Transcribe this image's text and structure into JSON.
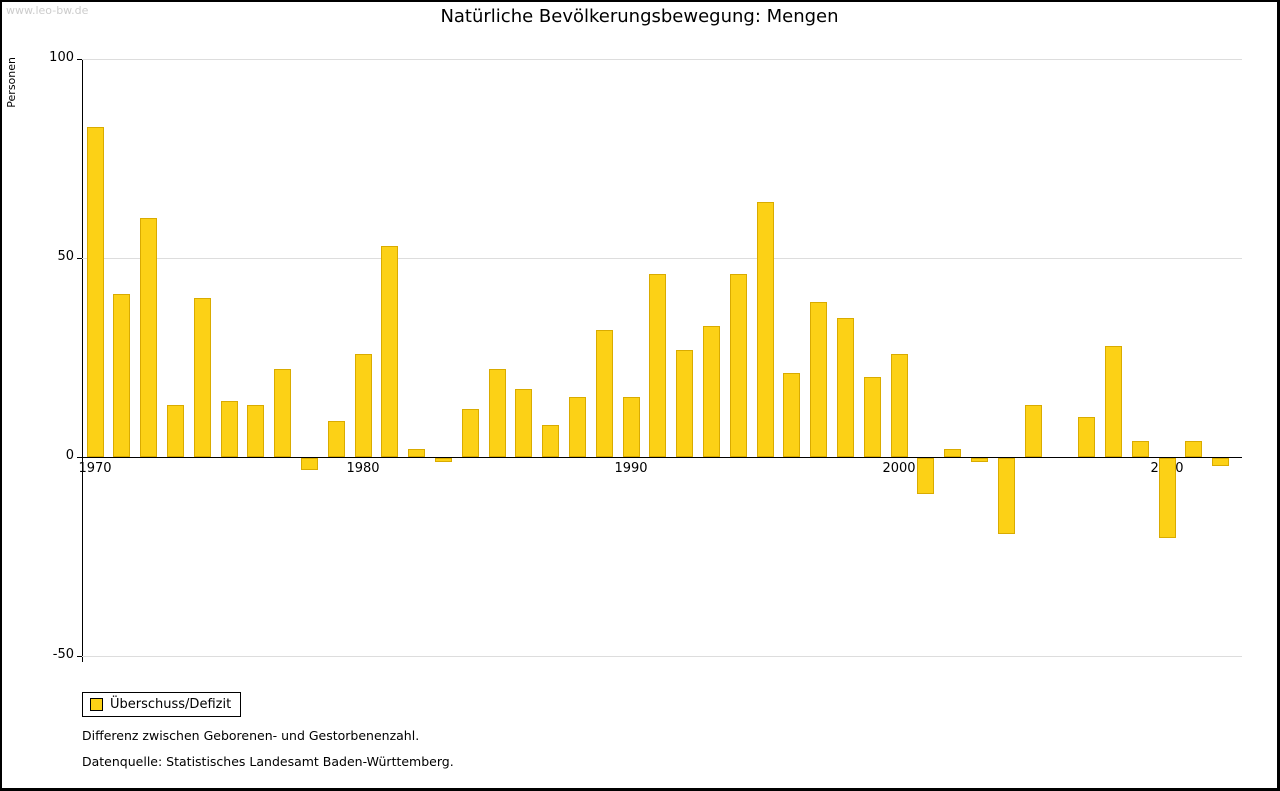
{
  "watermark": "www.leo-bw.de",
  "title": "Natürliche Bevölkerungsbewegung: Mengen",
  "y_axis_label": "Personen",
  "legend": {
    "label": "Überschuss/Defizit",
    "swatch_color": "#FCD116"
  },
  "footnotes": [
    "Differenz zwischen Geborenen- und Gestorbenenzahl.",
    "Datenquelle: Statistisches Landesamt Baden-Württemberg."
  ],
  "chart_data": {
    "type": "bar",
    "title": "Natürliche Bevölkerungsbewegung: Mengen",
    "xlabel": "",
    "ylabel": "Personen",
    "ylim": [
      -50,
      100
    ],
    "yticks": [
      100,
      50,
      0,
      -50
    ],
    "xticks": [
      1970,
      1980,
      1990,
      2000,
      2010
    ],
    "grid": true,
    "legend_position": "bottom-left",
    "bar_color": "#FCD116",
    "series_name": "Überschuss/Defizit",
    "years": [
      1970,
      1971,
      1972,
      1973,
      1974,
      1975,
      1976,
      1977,
      1978,
      1979,
      1980,
      1981,
      1982,
      1983,
      1984,
      1985,
      1986,
      1987,
      1988,
      1989,
      1990,
      1991,
      1992,
      1993,
      1994,
      1995,
      1996,
      1997,
      1998,
      1999,
      2000,
      2001,
      2002,
      2003,
      2004,
      2005,
      2006,
      2007,
      2008,
      2009,
      2010,
      2011,
      2012
    ],
    "values": [
      83,
      41,
      60,
      13,
      40,
      14,
      13,
      22,
      -3,
      9,
      26,
      53,
      2,
      -1,
      12,
      22,
      17,
      8,
      15,
      32,
      15,
      46,
      27,
      33,
      46,
      64,
      21,
      39,
      35,
      20,
      26,
      -9,
      2,
      -1,
      -19,
      13,
      0,
      10,
      28,
      4,
      -20,
      4,
      -2
    ]
  }
}
